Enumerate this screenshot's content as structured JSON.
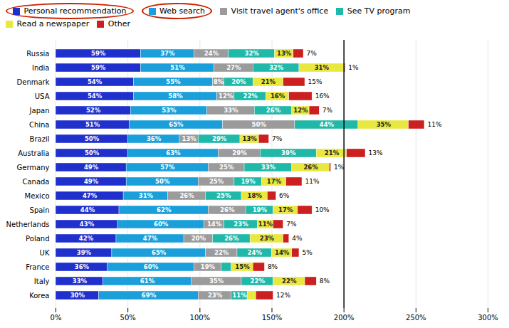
{
  "chart_data": {
    "type": "bar",
    "orientation": "horizontal",
    "stacked": true,
    "data_labels": true,
    "grid": true,
    "legend": "top",
    "categories": [
      "Russia",
      "India",
      "Denmark",
      "USA",
      "Japan",
      "China",
      "Brazil",
      "Australia",
      "Germany",
      "Canada",
      "Mexico",
      "Spain",
      "Netherlands",
      "Poland",
      "UK",
      "France",
      "Italy",
      "Korea"
    ],
    "series": [
      {
        "name": "Personal recommendation",
        "color": "#2030CC",
        "values": [
          59,
          59,
          54,
          54,
          52,
          51,
          50,
          50,
          49,
          49,
          47,
          44,
          43,
          42,
          39,
          36,
          33,
          30
        ],
        "value_labels": [
          "59%",
          "59%",
          "54%",
          "54%",
          "52%",
          "51%",
          "50%",
          "50%",
          "49%",
          "49%",
          "47%",
          "44%",
          "43%",
          "42%",
          "39%",
          "36%",
          "33%",
          "30%"
        ]
      },
      {
        "name": "Web search",
        "color": "#1A9FDA",
        "values": [
          37,
          51,
          55,
          58,
          53,
          65,
          36,
          63,
          57,
          50,
          31,
          62,
          60,
          47,
          65,
          60,
          61,
          69
        ],
        "value_labels": [
          "37%",
          "51%",
          "55%",
          "58%",
          "53%",
          "65%",
          "36%",
          "63%",
          "57%",
          "50%",
          "31%",
          "62%",
          "60%",
          "47%",
          "65%",
          "60%",
          "61%",
          "69%"
        ]
      },
      {
        "name": "Visit travel agent's office",
        "color": "#9B9B9B",
        "values": [
          24,
          27,
          8,
          12,
          33,
          50,
          13,
          29,
          25,
          25,
          26,
          26,
          14,
          20,
          22,
          19,
          35,
          23
        ],
        "value_labels": [
          "24%",
          "27%",
          "8%",
          "12%",
          "33%",
          "50%",
          "13%",
          "29%",
          "25%",
          "25%",
          "26%",
          "26%",
          "14%",
          "20%",
          "22%",
          "19%",
          "35%",
          "23%"
        ]
      },
      {
        "name": "See TV program",
        "color": "#20B8A8",
        "values": [
          32,
          32,
          20,
          22,
          26,
          44,
          29,
          39,
          33,
          19,
          25,
          19,
          23,
          26,
          24,
          7,
          22,
          11
        ],
        "value_labels": [
          "32%",
          "32%",
          "20%",
          "22%",
          "26%",
          "44%",
          "29%",
          "39%",
          "33%",
          "19%",
          "25%",
          "19%",
          "23%",
          "26%",
          "24%",
          null,
          "22%",
          "11%"
        ]
      },
      {
        "name": "Read a newspaper",
        "color": "#E8E840",
        "values": [
          13,
          31,
          21,
          16,
          12,
          35,
          13,
          21,
          26,
          17,
          18,
          17,
          11,
          23,
          14,
          15,
          22,
          6
        ],
        "value_labels": [
          "13%",
          "31%",
          "21%",
          "16%",
          "12%",
          "35%",
          "13%",
          "21%",
          "26%",
          "17%",
          "18%",
          "17%",
          "11%",
          "23%",
          "14%",
          "15%",
          "22%",
          null
        ]
      },
      {
        "name": "Other",
        "color": "#CC2020",
        "values": [
          7,
          1,
          15,
          16,
          7,
          11,
          7,
          13,
          1,
          11,
          6,
          10,
          7,
          4,
          5,
          8,
          8,
          12
        ],
        "value_labels": [
          "7%",
          "1%",
          "15%",
          "16%",
          "7%",
          "11%",
          "7%",
          "13%",
          "1%",
          "11%",
          "6%",
          "10%",
          "7%",
          "4%",
          "5%",
          "8%",
          "8%",
          "12%"
        ]
      }
    ],
    "xlim": [
      0,
      300
    ],
    "xticks": [
      {
        "value": 0,
        "label": "0%"
      },
      {
        "value": 50,
        "label": "50%"
      },
      {
        "value": 100,
        "label": "100%"
      },
      {
        "value": 150,
        "label": "150%"
      },
      {
        "value": 200,
        "label": "200%"
      },
      {
        "value": 250,
        "label": "250%"
      },
      {
        "value": 300,
        "label": "300%"
      }
    ],
    "annotations": [
      {
        "type": "line",
        "x": 200
      }
    ]
  }
}
